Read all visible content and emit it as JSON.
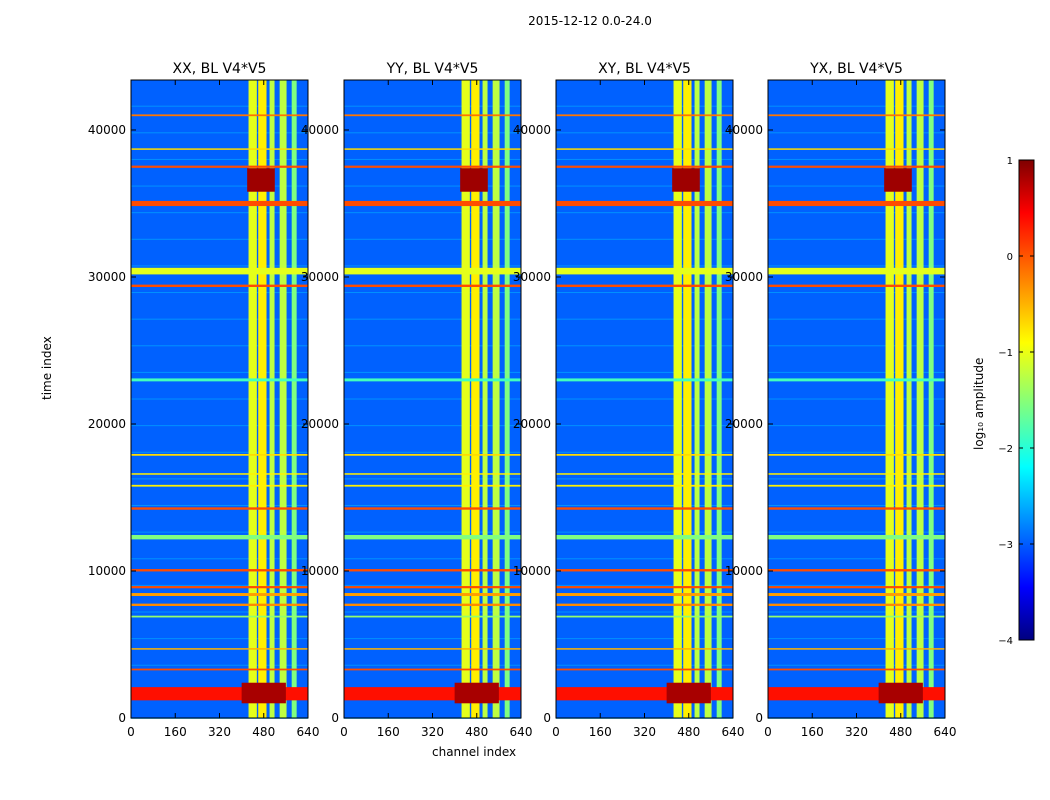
{
  "chart_data": {
    "type": "heatmap",
    "suptitle": "2015-12-12 0.0-24.0",
    "xlabel": "channel index",
    "ylabel": "time index",
    "xlim": [
      0,
      640
    ],
    "ylim": [
      0,
      43400
    ],
    "x_ticks": [
      "0",
      "160",
      "320",
      "480",
      "640"
    ],
    "y_ticks": [
      "0",
      "10000",
      "20000",
      "30000",
      "40000"
    ],
    "panels": [
      {
        "title": "XX, BL V4*V5"
      },
      {
        "title": "YY, BL V4*V5"
      },
      {
        "title": "XY, BL V4*V5"
      },
      {
        "title": "YX, BL V4*V5"
      }
    ],
    "colorbar": {
      "label": "log₁₀ amplitude",
      "range": [
        -4,
        1
      ],
      "ticks": [
        "1",
        "0",
        "−1",
        "−2",
        "−3",
        "−4"
      ],
      "colormap": "jet"
    },
    "band_rows_time_index": [
      {
        "t": 1650,
        "level": 0.3,
        "height": 900
      },
      {
        "t": 3300,
        "level": 0.0,
        "height": 120
      },
      {
        "t": 4700,
        "level": -0.5,
        "height": 80
      },
      {
        "t": 6900,
        "level": -1.4,
        "height": 120
      },
      {
        "t": 7700,
        "level": -0.3,
        "height": 160
      },
      {
        "t": 8400,
        "level": -0.4,
        "height": 200
      },
      {
        "t": 8900,
        "level": 0.0,
        "height": 150
      },
      {
        "t": 10050,
        "level": 0.0,
        "height": 160
      },
      {
        "t": 12300,
        "level": -1.5,
        "height": 300
      },
      {
        "t": 14250,
        "level": 0.0,
        "height": 160
      },
      {
        "t": 15800,
        "level": -0.8,
        "height": 120
      },
      {
        "t": 16600,
        "level": -0.8,
        "height": 100
      },
      {
        "t": 17900,
        "level": -0.7,
        "height": 120
      },
      {
        "t": 23000,
        "level": -1.8,
        "height": 200
      },
      {
        "t": 29400,
        "level": 0.0,
        "height": 160
      },
      {
        "t": 30400,
        "level": -1.0,
        "height": 450
      },
      {
        "t": 35000,
        "level": 0.0,
        "height": 350
      },
      {
        "t": 37500,
        "level": 0.0,
        "height": 150
      },
      {
        "t": 38700,
        "level": -0.7,
        "height": 100
      },
      {
        "t": 41000,
        "level": -0.2,
        "height": 120
      }
    ],
    "band_columns_channel": [
      {
        "c": 440,
        "level": -1.0,
        "width": 30
      },
      {
        "c": 475,
        "level": -0.8,
        "width": 30
      },
      {
        "c": 510,
        "level": -1.2,
        "width": 18
      },
      {
        "c": 550,
        "level": -1.2,
        "width": 25
      },
      {
        "c": 590,
        "level": -1.5,
        "width": 18
      }
    ]
  }
}
